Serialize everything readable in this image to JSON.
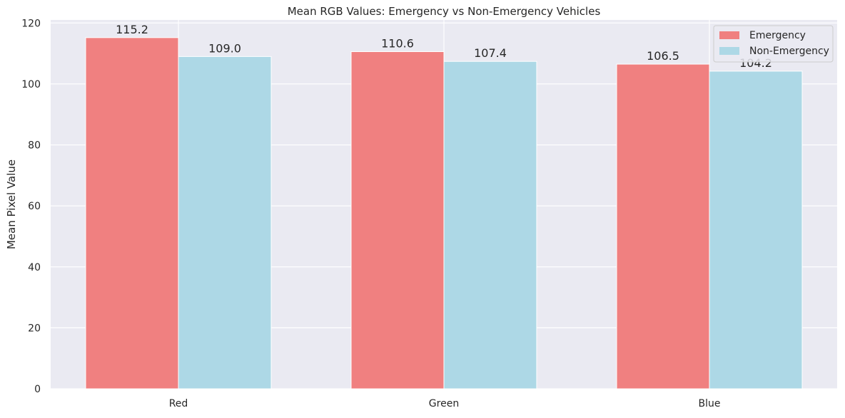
{
  "colors": {
    "plot_background": "#eaeaf2",
    "grid": "#ffffff",
    "text": "#262626",
    "legend_border": "#cccccc"
  },
  "chart_data": {
    "type": "bar",
    "title": "Mean RGB Values: Emergency vs Non-Emergency Vehicles",
    "xlabel": "",
    "ylabel": "Mean Pixel Value",
    "categories": [
      "Red",
      "Green",
      "Blue"
    ],
    "series": [
      {
        "name": "Emergency",
        "color": "#f08080",
        "values": [
          115.2,
          110.6,
          106.5
        ],
        "value_labels": [
          "115.2",
          "110.6",
          "106.5"
        ]
      },
      {
        "name": "Non-Emergency",
        "color": "#add8e6",
        "values": [
          109.0,
          107.4,
          104.2
        ],
        "value_labels": [
          "109.0",
          "107.4",
          "104.2"
        ]
      }
    ],
    "ylim": [
      0,
      121
    ],
    "yticks": [
      0,
      20,
      40,
      60,
      80,
      100,
      120
    ],
    "grid": true,
    "legend_position": "top-right"
  }
}
